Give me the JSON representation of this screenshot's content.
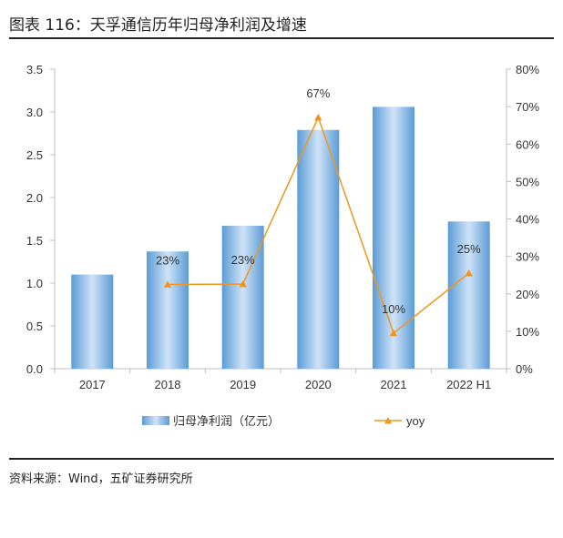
{
  "header": {
    "title": "图表 116：天孚通信历年归母净利润及增速"
  },
  "footer": {
    "source": "资料来源：Wind，五矿证券研究所"
  },
  "colors": {
    "bar_light": "#cfe3f7",
    "bar_dark": "#5b9bd5",
    "line": "#f0961e",
    "axis": "#bfbfbf",
    "text": "#333333"
  },
  "chart_data": {
    "type": "bar",
    "categories": [
      "2017",
      "2018",
      "2019",
      "2020",
      "2021",
      "2022 H1"
    ],
    "series": [
      {
        "name": "归母净利润（亿元）",
        "type": "bar",
        "axis": "left",
        "values": [
          1.1,
          1.37,
          1.67,
          2.79,
          3.06,
          1.72
        ]
      },
      {
        "name": "yoy",
        "type": "line",
        "axis": "right",
        "values": [
          null,
          0.225,
          0.226,
          0.671,
          0.095,
          0.255
        ]
      }
    ],
    "data_labels": [
      "",
      "23%",
      "23%",
      "67%",
      "10%",
      "25%"
    ],
    "ylim": [
      0,
      3.5
    ],
    "yticks": [
      "0.0",
      "0.5",
      "1.0",
      "1.5",
      "2.0",
      "2.5",
      "3.0",
      "3.5"
    ],
    "y2lim": [
      0,
      0.8
    ],
    "y2ticks": [
      "0%",
      "10%",
      "20%",
      "30%",
      "40%",
      "50%",
      "60%",
      "70%",
      "80%"
    ],
    "legend_position": "bottom",
    "grid": false
  }
}
